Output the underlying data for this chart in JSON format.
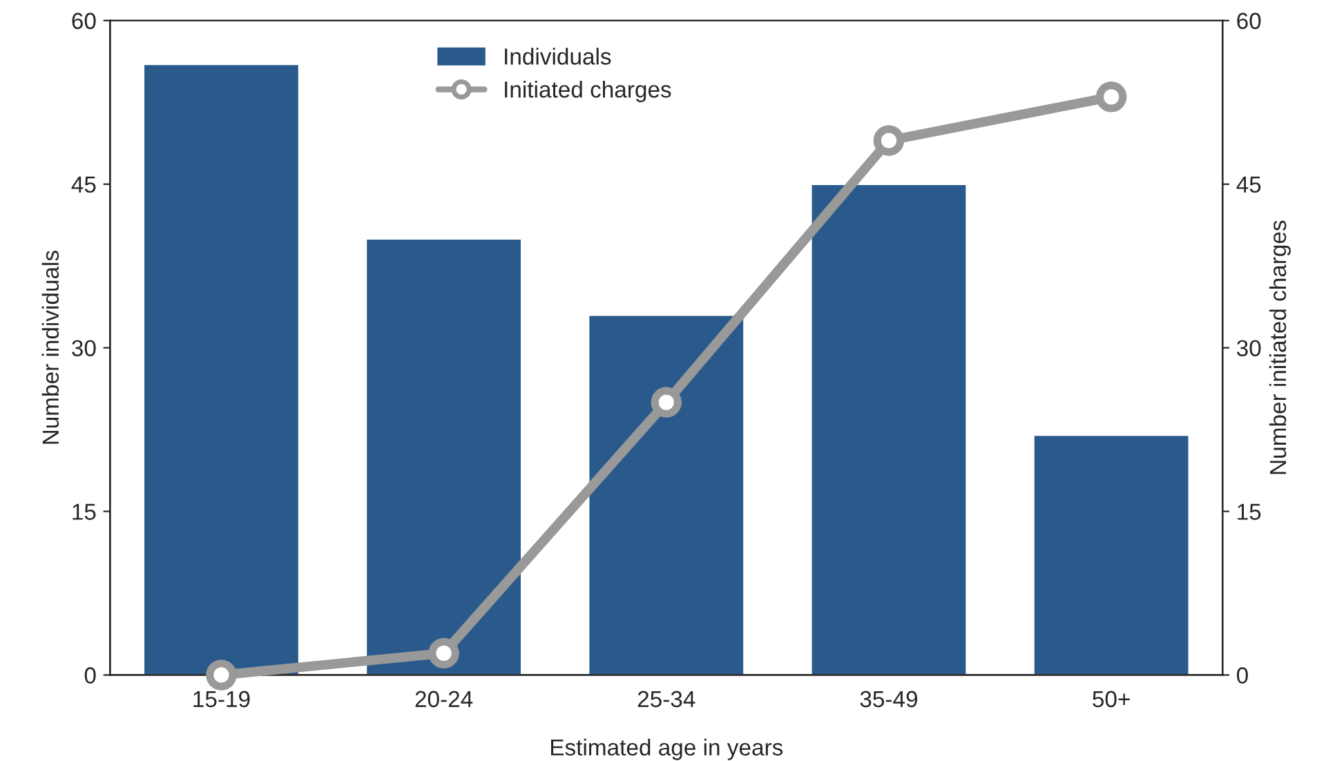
{
  "chart_data": {
    "type": "bar",
    "xlabel": "Estimated age in years",
    "ylabel": "Number individuals",
    "y2label": "Number initiated charges",
    "categories": [
      "15-19",
      "20-24",
      "25-34",
      "35-49",
      "50+"
    ],
    "series": [
      {
        "name": "Individuals",
        "color": "#2a5a8c",
        "values": [
          56,
          40,
          33,
          45,
          22
        ]
      },
      {
        "name": "Initiated charges",
        "type": "line",
        "axis": "y2",
        "color": "#999999",
        "marker": "circle",
        "values": [
          0,
          2,
          25,
          49,
          53
        ]
      }
    ],
    "ylim": [
      0,
      60
    ],
    "yticks": [
      0,
      15,
      30,
      45,
      60
    ],
    "y2lim": [
      0,
      60
    ],
    "y2ticks": [
      0,
      15,
      30,
      45,
      60
    ],
    "grid": false,
    "legend": "top"
  }
}
